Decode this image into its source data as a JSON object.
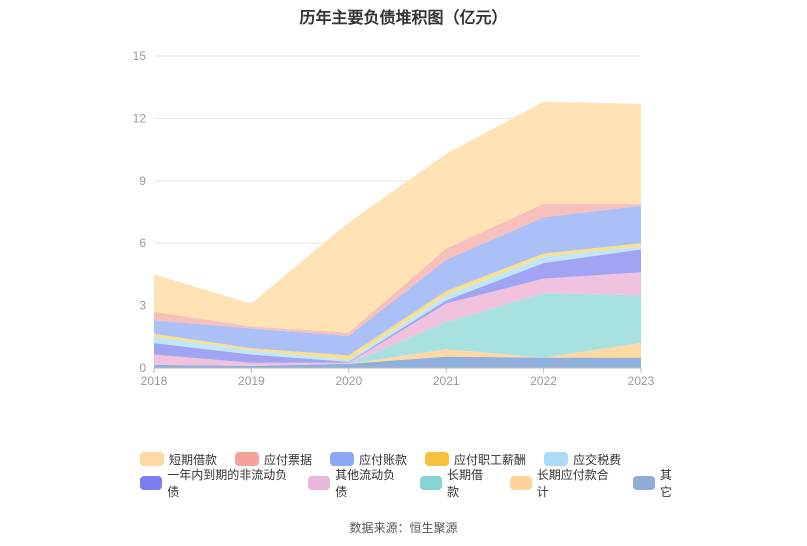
{
  "chart_data": {
    "type": "area",
    "stacked": true,
    "title": "历年主要负债堆积图（亿元）",
    "x": [
      "2018",
      "2019",
      "2020",
      "2021",
      "2022",
      "2023"
    ],
    "ylim": [
      0,
      15
    ],
    "yticks": [
      0,
      3,
      6,
      9,
      12,
      15
    ],
    "grid": true,
    "legend_position": "bottom",
    "series": [
      {
        "name": "其它",
        "color": "#8fb0dc",
        "values": [
          0.15,
          0.1,
          0.2,
          0.55,
          0.5,
          0.5
        ]
      },
      {
        "name": "长期应付款合计",
        "color": "#ffd9a3",
        "values": [
          0.0,
          0.0,
          0.0,
          0.35,
          0.0,
          0.7
        ]
      },
      {
        "name": "长期借款",
        "color": "#a7e2e0",
        "values": [
          0.0,
          0.0,
          0.0,
          1.3,
          3.1,
          2.3
        ]
      },
      {
        "name": "其他流动负债",
        "color": "#f0c2de",
        "values": [
          0.5,
          0.15,
          0.05,
          0.9,
          0.7,
          1.1
        ]
      },
      {
        "name": "一年内到期的非流动负债",
        "color": "#a1a4f2",
        "values": [
          0.55,
          0.4,
          0.05,
          0.15,
          0.75,
          1.1
        ]
      },
      {
        "name": "应交税费",
        "color": "#c2e6f8",
        "values": [
          0.3,
          0.2,
          0.1,
          0.25,
          0.3,
          0.15
        ]
      },
      {
        "name": "应付职工薪酬",
        "color": "#fbe08a",
        "values": [
          0.15,
          0.1,
          0.2,
          0.2,
          0.15,
          0.15
        ]
      },
      {
        "name": "应付账款",
        "color": "#aac0f7",
        "values": [
          0.65,
          0.95,
          0.95,
          1.5,
          1.75,
          1.8
        ]
      },
      {
        "name": "应付票据",
        "color": "#f8c0bb",
        "values": [
          0.4,
          0.1,
          0.15,
          0.55,
          0.65,
          0.1
        ]
      },
      {
        "name": "短期借款",
        "color": "#ffe3b5",
        "values": [
          1.8,
          1.1,
          5.3,
          4.55,
          4.9,
          4.8
        ]
      }
    ]
  },
  "legend": {
    "row1": [
      {
        "label": "短期借款",
        "color": "#ffd9a3"
      },
      {
        "label": "应付票据",
        "color": "#f5a29a"
      },
      {
        "label": "应付账款",
        "color": "#8aa8f5"
      },
      {
        "label": "应付职工薪酬",
        "color": "#f6c13c"
      },
      {
        "label": "应交税费",
        "color": "#a9dcf7"
      }
    ],
    "row2": [
      {
        "label": "一年内到期的非流动负债",
        "color": "#7b7ef0"
      },
      {
        "label": "其他流动负债",
        "color": "#e8b6d8"
      },
      {
        "label": "长期借款",
        "color": "#83d4d2"
      },
      {
        "label": "长期应付款合计",
        "color": "#ffd49a"
      },
      {
        "label": "其它",
        "color": "#90acd8"
      }
    ]
  },
  "source": "数据来源：恒生聚源"
}
